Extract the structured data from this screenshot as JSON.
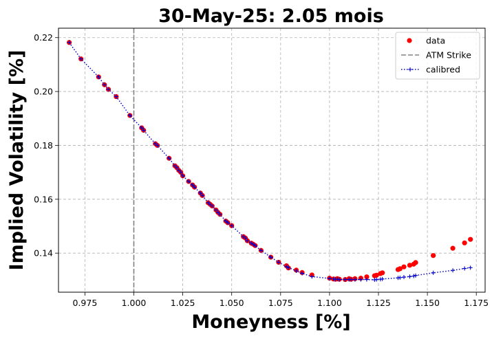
{
  "chart_data": {
    "type": "scatter",
    "title": "30-May-25: 2.05 mois",
    "xlabel": "Moneyness [%]",
    "ylabel": "Implied Volatility [%]",
    "xlim": [
      0.9615,
      1.1795
    ],
    "ylim": [
      0.1255,
      0.2235
    ],
    "x_ticks": [
      "0.975",
      "1.000",
      "1.025",
      "1.050",
      "1.075",
      "1.100",
      "1.125",
      "1.150",
      "1.175"
    ],
    "x_tick_values": [
      0.975,
      1.0,
      1.025,
      1.05,
      1.075,
      1.1,
      1.125,
      1.15,
      1.175
    ],
    "y_ticks": [
      "0.14",
      "0.16",
      "0.18",
      "0.20",
      "0.22"
    ],
    "y_tick_values": [
      0.14,
      0.16,
      0.18,
      0.2,
      0.22
    ],
    "grid": true,
    "legend_position": "top-right",
    "atm_strike": 1.0,
    "series": [
      {
        "name": "data",
        "kind": "scatter",
        "color": "#ff0000",
        "x": [
          0.967,
          0.973,
          0.982,
          0.985,
          0.987,
          0.991,
          0.998,
          1.004,
          1.005,
          1.011,
          1.012,
          1.018,
          1.021,
          1.022,
          1.023,
          1.024,
          1.025,
          1.028,
          1.03,
          1.031,
          1.034,
          1.035,
          1.038,
          1.039,
          1.04,
          1.042,
          1.043,
          1.044,
          1.047,
          1.048,
          1.05,
          1.056,
          1.057,
          1.058,
          1.06,
          1.061,
          1.062,
          1.065,
          1.07,
          1.074,
          1.078,
          1.079,
          1.083,
          1.086,
          1.091,
          1.1,
          1.102,
          1.103,
          1.104,
          1.105,
          1.108,
          1.11,
          1.111,
          1.113,
          1.116,
          1.119,
          1.123,
          1.124,
          1.126,
          1.127,
          1.135,
          1.136,
          1.138,
          1.141,
          1.143,
          1.144,
          1.153,
          1.163,
          1.169,
          1.172
        ],
        "y": [
          0.2182,
          0.2121,
          0.2054,
          0.2025,
          0.2008,
          0.1981,
          0.1911,
          0.1865,
          0.1856,
          0.1806,
          0.18,
          0.1752,
          0.1724,
          0.1717,
          0.1707,
          0.17,
          0.1687,
          0.1666,
          0.1653,
          0.1645,
          0.1623,
          0.1614,
          0.1587,
          0.1581,
          0.1575,
          0.156,
          0.1551,
          0.1544,
          0.1519,
          0.1513,
          0.1502,
          0.1461,
          0.1456,
          0.1446,
          0.1437,
          0.1433,
          0.1428,
          0.141,
          0.1385,
          0.1366,
          0.1353,
          0.1345,
          0.1337,
          0.1328,
          0.1319,
          0.1307,
          0.1304,
          0.1303,
          0.1305,
          0.1303,
          0.1302,
          0.1305,
          0.1303,
          0.1305,
          0.1307,
          0.1312,
          0.1316,
          0.1318,
          0.1324,
          0.1327,
          0.1339,
          0.1342,
          0.1349,
          0.1355,
          0.1359,
          0.1365,
          0.1391,
          0.1418,
          0.1438,
          0.1451
        ]
      },
      {
        "name": "calibred",
        "kind": "line",
        "color": "#0000cc",
        "x": [
          0.967,
          0.973,
          0.982,
          0.985,
          0.987,
          0.991,
          0.998,
          1.004,
          1.005,
          1.011,
          1.012,
          1.018,
          1.021,
          1.022,
          1.023,
          1.024,
          1.025,
          1.028,
          1.03,
          1.031,
          1.034,
          1.035,
          1.038,
          1.039,
          1.04,
          1.042,
          1.043,
          1.044,
          1.047,
          1.048,
          1.05,
          1.056,
          1.057,
          1.058,
          1.06,
          1.061,
          1.062,
          1.065,
          1.07,
          1.074,
          1.078,
          1.079,
          1.083,
          1.086,
          1.091,
          1.1,
          1.102,
          1.103,
          1.104,
          1.105,
          1.108,
          1.11,
          1.111,
          1.113,
          1.116,
          1.119,
          1.123,
          1.124,
          1.126,
          1.127,
          1.135,
          1.136,
          1.138,
          1.141,
          1.143,
          1.144,
          1.153,
          1.163,
          1.169,
          1.172
        ],
        "y": [
          0.2182,
          0.2121,
          0.2054,
          0.2025,
          0.2008,
          0.1981,
          0.1911,
          0.1865,
          0.1856,
          0.1806,
          0.18,
          0.1752,
          0.1724,
          0.1717,
          0.1707,
          0.17,
          0.1687,
          0.1666,
          0.1653,
          0.1645,
          0.1623,
          0.1614,
          0.1587,
          0.1581,
          0.1575,
          0.156,
          0.1551,
          0.1544,
          0.1519,
          0.1513,
          0.1502,
          0.1461,
          0.1456,
          0.1446,
          0.1437,
          0.1433,
          0.1428,
          0.141,
          0.1385,
          0.1366,
          0.135,
          0.1346,
          0.1334,
          0.1325,
          0.1313,
          0.1306,
          0.1304,
          0.1303,
          0.1303,
          0.1302,
          0.1302,
          0.1302,
          0.1302,
          0.1302,
          0.1302,
          0.1302,
          0.1301,
          0.1302,
          0.1303,
          0.1304,
          0.1308,
          0.1309,
          0.1311,
          0.1313,
          0.1315,
          0.1317,
          0.1327,
          0.1336,
          0.1343,
          0.1346
        ]
      }
    ],
    "legend": [
      {
        "label": "data",
        "style": "marker",
        "color": "#ff0000"
      },
      {
        "label": "ATM Strike",
        "style": "dashed",
        "color": "#808080"
      },
      {
        "label": "calibred",
        "style": "dotted-plus",
        "color": "#0000cc"
      }
    ]
  }
}
